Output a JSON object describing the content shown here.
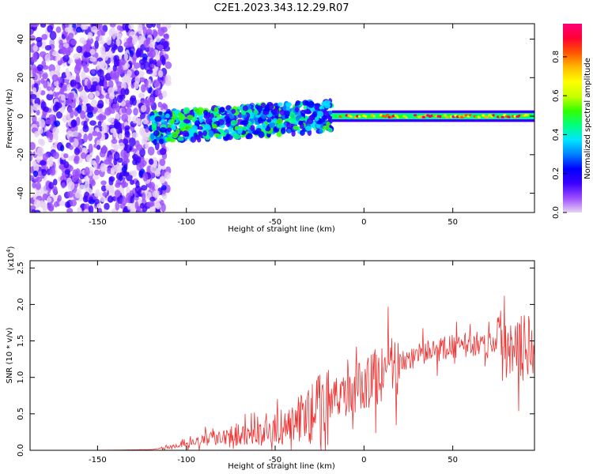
{
  "figure": {
    "title": "C2E1.2023.343.12.29.R07"
  },
  "chart_data": [
    {
      "type": "heatmap",
      "xlabel": "Height of straight line (km)",
      "ylabel": "Frequency (Hz)",
      "xlim": [
        -188,
        96
      ],
      "ylim": [
        -50,
        48
      ],
      "x_ticks": [
        -150,
        -100,
        -50,
        0,
        50
      ],
      "y_ticks": [
        -40,
        -20,
        0,
        20,
        40
      ],
      "colorbar": {
        "label": "Normalized spectral amplitude",
        "range": [
          0,
          0.97
        ],
        "ticks": [
          0.0,
          0.2,
          0.4,
          0.6,
          0.8
        ],
        "colormap": [
          "#e7d3f2",
          "#9b4dff",
          "#3b00ff",
          "#0000ff",
          "#0080ff",
          "#00e5ff",
          "#00ff80",
          "#33ff00",
          "#c8ff00",
          "#ffff00",
          "#ffbb00",
          "#ff5500",
          "#ff0033",
          "#ff0077"
        ]
      },
      "regions": [
        {
          "description_x": [
            -188,
            -120
          ],
          "freq_span": [
            -50,
            48
          ],
          "amplitude": [
            0.02,
            0.2
          ]
        },
        {
          "description_x": [
            -120,
            -18
          ],
          "freq_center": [
            -6,
            2
          ],
          "amplitude": [
            0.15,
            0.55
          ]
        },
        {
          "description_x": [
            -18,
            96
          ],
          "freq_center": 0,
          "amplitude": [
            0.4,
            0.97
          ]
        }
      ]
    },
    {
      "type": "line",
      "xlabel": "Height of straight line (km)",
      "ylabel": "SNR (10 * v/v)",
      "yscale_label": "(x10",
      "yscale_exp": "4",
      "xlim": [
        -188,
        96
      ],
      "ylim": [
        0,
        2.6
      ],
      "x_ticks": [
        -150,
        -100,
        -50,
        0,
        50
      ],
      "y_ticks": [
        0.0,
        0.5,
        1.0,
        1.5,
        2.0,
        2.5
      ],
      "series": [
        {
          "color": "#ee3333",
          "x": [
            -188,
            -150,
            -120,
            -110,
            -100,
            -90,
            -80,
            -70,
            -60,
            -50,
            -40,
            -30,
            -20,
            -10,
            0,
            10,
            20,
            30,
            40,
            50,
            60,
            70,
            80,
            85,
            90,
            93,
            96
          ],
          "y": [
            0.0,
            0.0,
            0.01,
            0.04,
            0.08,
            0.14,
            0.2,
            0.24,
            0.2,
            0.28,
            0.38,
            0.5,
            0.65,
            0.78,
            0.9,
            1.05,
            1.2,
            1.3,
            1.38,
            1.42,
            1.45,
            1.48,
            1.46,
            1.5,
            1.6,
            1.55,
            1.45
          ]
        }
      ]
    }
  ]
}
